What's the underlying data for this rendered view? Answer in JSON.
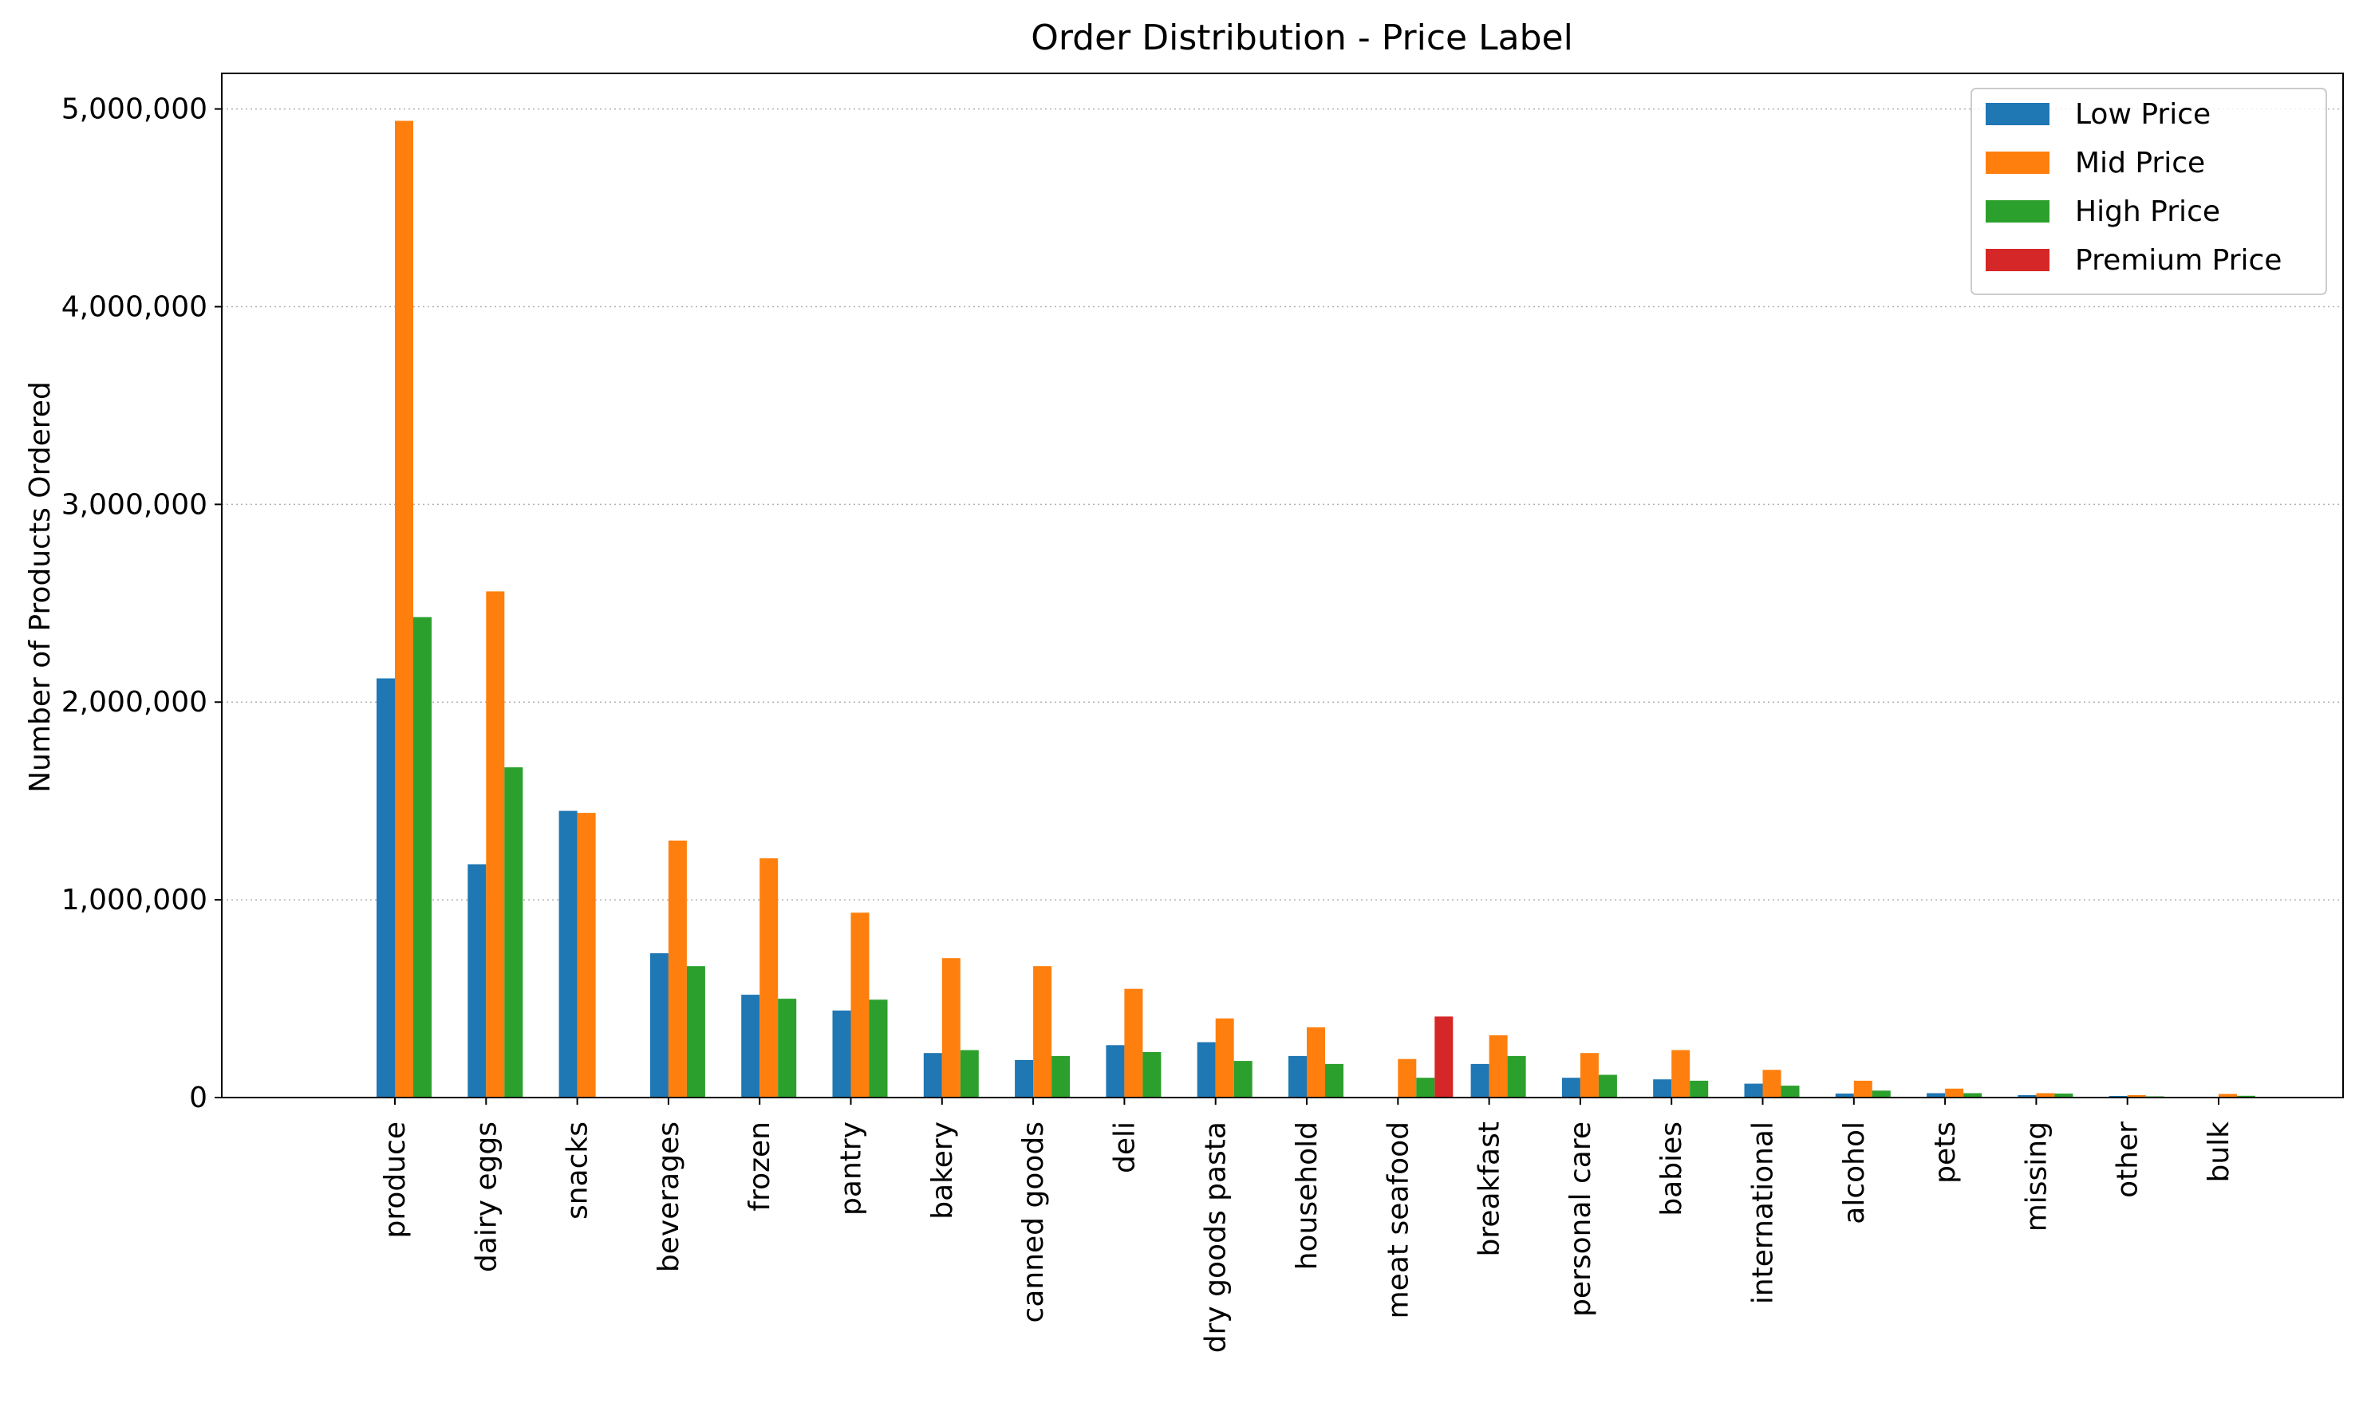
{
  "chart_data": {
    "type": "bar",
    "title": "Order Distribution - Price Label",
    "xlabel": "",
    "ylabel": "Number of Products Ordered",
    "ylim": [
      0,
      5180000
    ],
    "yticks": [
      0,
      1000000,
      2000000,
      3000000,
      4000000,
      5000000
    ],
    "ytick_labels": [
      "0",
      "1,000,000",
      "2,000,000",
      "3,000,000",
      "4,000,000",
      "5,000,000"
    ],
    "grid": "y-dotted",
    "legend_position": "top-right",
    "categories": [
      "produce",
      "dairy eggs",
      "snacks",
      "beverages",
      "frozen",
      "pantry",
      "bakery",
      "canned goods",
      "deli",
      "dry goods pasta",
      "household",
      "meat seafood",
      "breakfast",
      "personal care",
      "babies",
      "international",
      "alcohol",
      "pets",
      "missing",
      "other",
      "bulk"
    ],
    "series": [
      {
        "name": "Low Price",
        "color": "#1f77b4",
        "values": [
          2120000,
          1180000,
          1450000,
          730000,
          520000,
          440000,
          225000,
          190000,
          265000,
          280000,
          210000,
          0,
          170000,
          100000,
          92000,
          70000,
          20000,
          22000,
          12000,
          8000,
          0
        ]
      },
      {
        "name": "Mid Price",
        "color": "#ff7f0e",
        "values": [
          4940000,
          2560000,
          1440000,
          1300000,
          1210000,
          935000,
          705000,
          665000,
          550000,
          400000,
          355000,
          195000,
          315000,
          225000,
          240000,
          140000,
          85000,
          45000,
          22000,
          12000,
          18000
        ]
      },
      {
        "name": "High Price",
        "color": "#2ca02c",
        "values": [
          2430000,
          1670000,
          0,
          665000,
          500000,
          495000,
          240000,
          210000,
          230000,
          185000,
          170000,
          100000,
          210000,
          115000,
          85000,
          60000,
          35000,
          22000,
          20000,
          6000,
          9000
        ]
      },
      {
        "name": "Premium Price",
        "color": "#d62728",
        "values": [
          0,
          0,
          0,
          0,
          0,
          0,
          0,
          0,
          0,
          0,
          0,
          410000,
          0,
          0,
          0,
          0,
          0,
          0,
          0,
          0,
          0
        ]
      }
    ]
  }
}
